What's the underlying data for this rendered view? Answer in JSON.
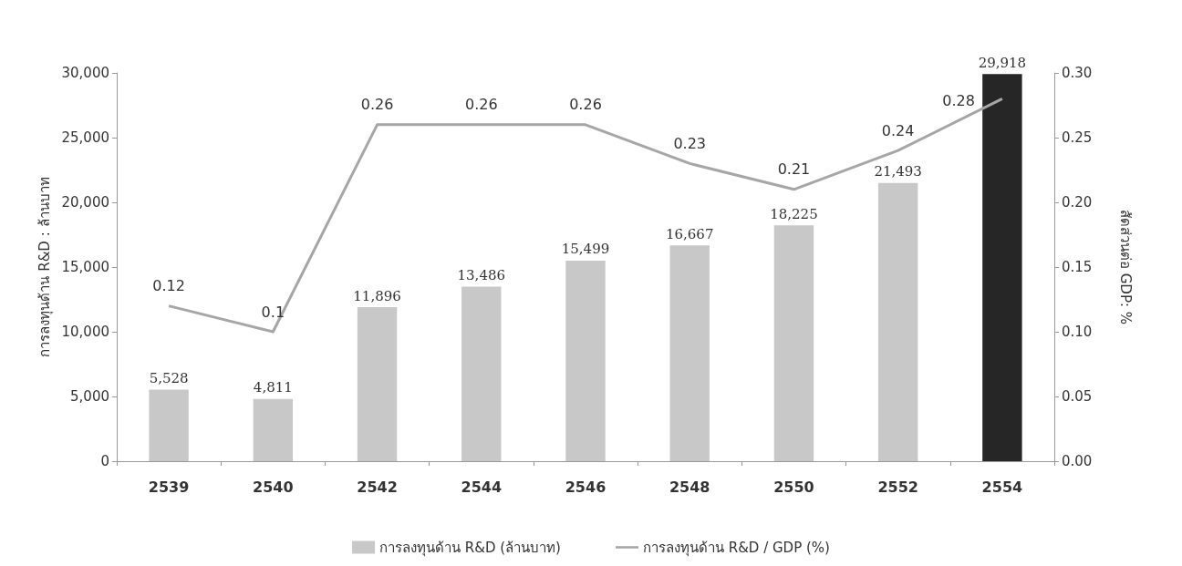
{
  "chart_data": {
    "type": "bar",
    "categories": [
      "2539",
      "2540",
      "2542",
      "2544",
      "2546",
      "2548",
      "2550",
      "2552",
      "2554"
    ],
    "ylabel": "การลงทุนด้าน R&D : ล้านบาท",
    "y2label": "สัดส่วนต่อ GDP: %",
    "series": [
      {
        "name": "การลงทุนด้าน R&D (ล้านบาท)",
        "color": "#c8c8c8",
        "colors": [
          "#c8c8c8",
          "#c8c8c8",
          "#c8c8c8",
          "#c8c8c8",
          "#c8c8c8",
          "#c8c8c8",
          "#c8c8c8",
          "#c8c8c8",
          "#262626"
        ],
        "values": [
          5528,
          4811,
          11896,
          13486,
          15499,
          16667,
          18225,
          21493,
          29918
        ],
        "value_labels": [
          "5,528",
          "4,811",
          "11,896",
          "13,486",
          "15,499",
          "16,667",
          "18,225",
          "21,493",
          "29,918"
        ]
      },
      {
        "type": "line",
        "axis": "y2",
        "name": "การลงทุนด้าน R&D / GDP (%)",
        "color": "#a6a6a6",
        "values": [
          0.12,
          0.1,
          0.26,
          0.26,
          0.26,
          0.23,
          0.21,
          0.24,
          0.28
        ]
      }
    ],
    "ylim": [
      0,
      30000
    ],
    "yticks": [
      {
        "value": 0,
        "label": "0"
      },
      {
        "value": 5000,
        "label": "5,000"
      },
      {
        "value": 10000,
        "label": "10,000"
      },
      {
        "value": 15000,
        "label": "15,000"
      },
      {
        "value": 20000,
        "label": "20,000"
      },
      {
        "value": 25000,
        "label": "25,000"
      },
      {
        "value": 30000,
        "label": "30,000"
      }
    ],
    "y2lim": [
      0,
      0.3
    ],
    "y2ticks": [
      {
        "value": 0,
        "label": "0.00"
      },
      {
        "value": 0.05,
        "label": "0.05"
      },
      {
        "value": 0.1,
        "label": "0.10"
      },
      {
        "value": 0.15,
        "label": "0.15"
      },
      {
        "value": 0.2,
        "label": "0.20"
      },
      {
        "value": 0.25,
        "label": "0.25"
      },
      {
        "value": 0.3,
        "label": "0.30"
      }
    ],
    "data_labels": true,
    "legend": "bottom",
    "grid": false,
    "marker": "none"
  }
}
